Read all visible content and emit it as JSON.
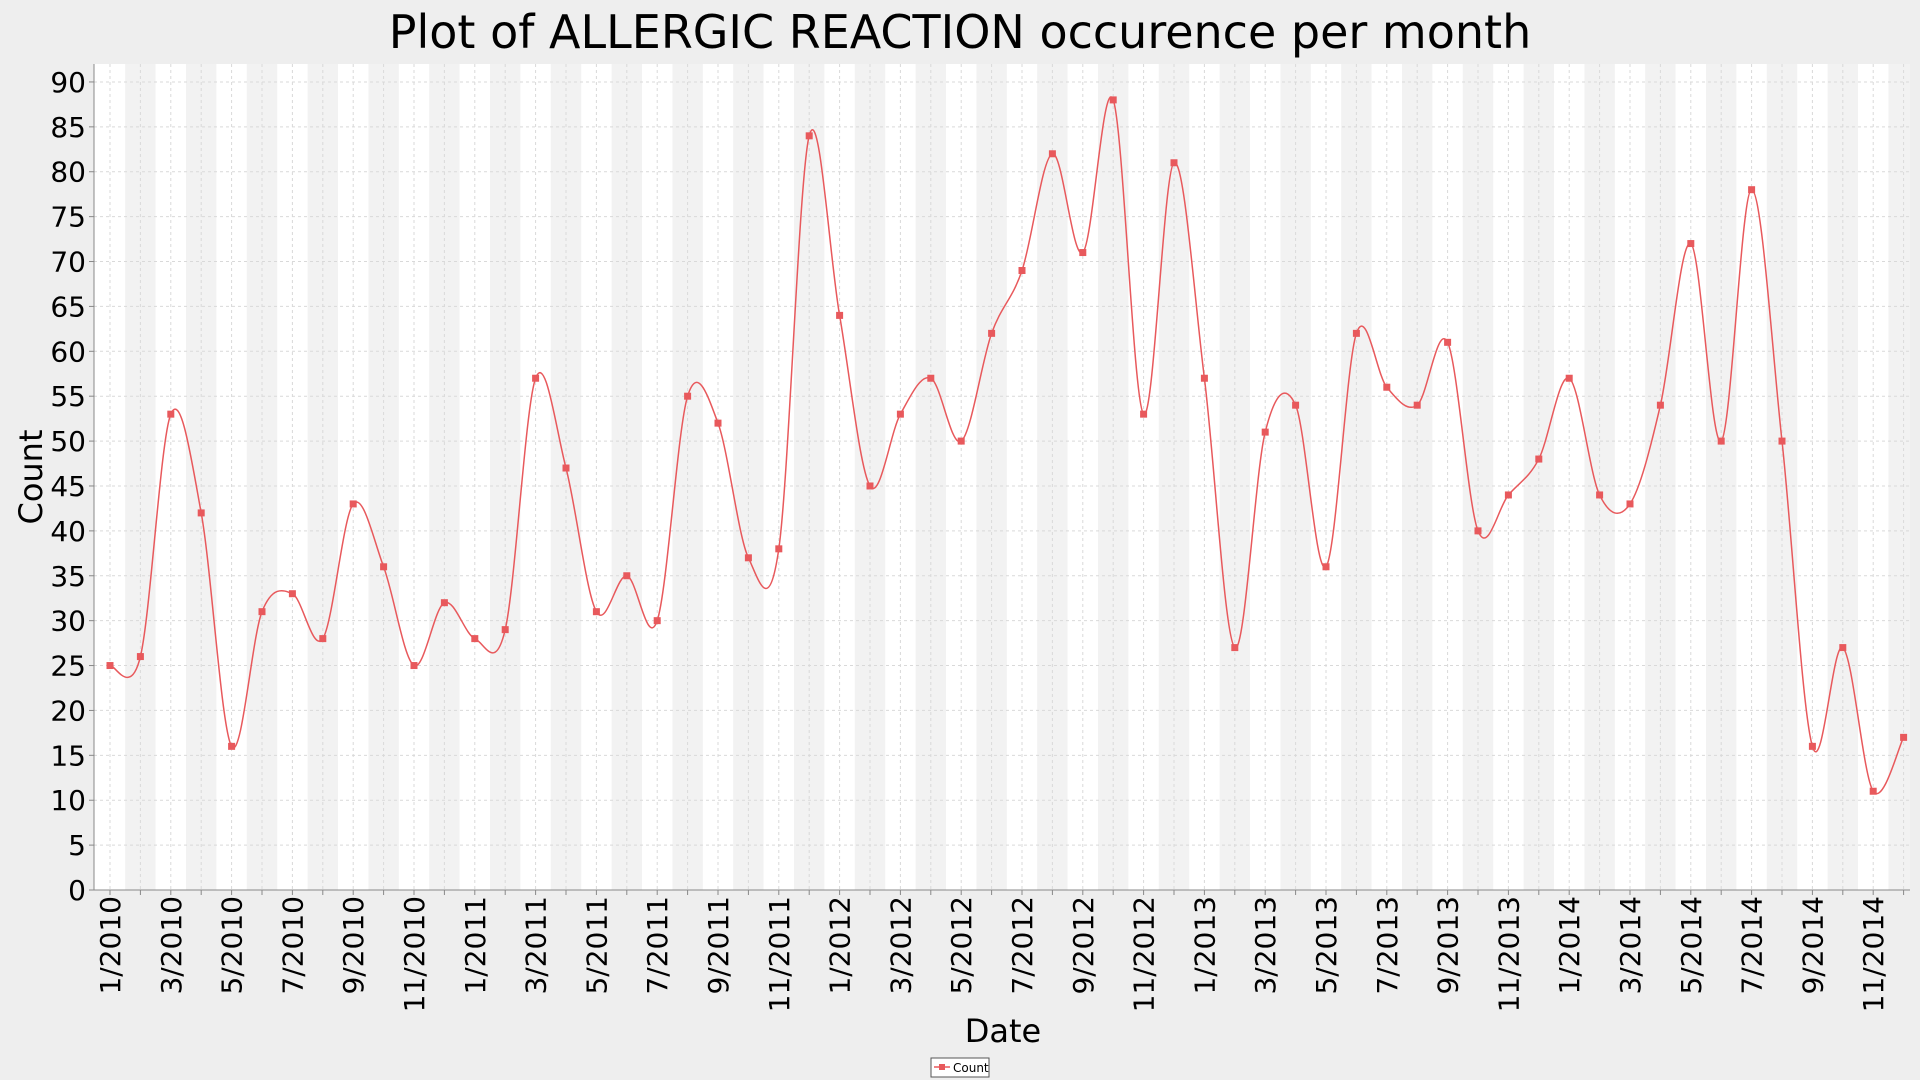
{
  "chart_data": {
    "type": "line",
    "title": "Plot of ALLERGIC REACTION occurence per month",
    "xlabel": "Date",
    "ylabel": "Count",
    "ylim": [
      0,
      92
    ],
    "y_ticks": [
      0,
      5,
      10,
      15,
      20,
      25,
      30,
      35,
      40,
      45,
      50,
      55,
      60,
      65,
      70,
      75,
      80,
      85,
      90
    ],
    "x_ticks": [
      "1/2010",
      "3/2010",
      "5/2010",
      "7/2010",
      "9/2010",
      "11/2010",
      "1/2011",
      "3/2011",
      "5/2011",
      "7/2011",
      "9/2011",
      "11/2011",
      "1/2012",
      "3/2012",
      "5/2012",
      "7/2012",
      "9/2012",
      "11/2012",
      "1/2013",
      "3/2013",
      "5/2013",
      "7/2013",
      "9/2013",
      "11/2013",
      "1/2014",
      "3/2014",
      "5/2014",
      "7/2014",
      "9/2014",
      "11/2014"
    ],
    "grid": true,
    "legend_position": "bottom-center",
    "series": [
      {
        "name": "Count",
        "color": "#e8595c",
        "x": [
          "1/2010",
          "2/2010",
          "3/2010",
          "4/2010",
          "5/2010",
          "6/2010",
          "7/2010",
          "8/2010",
          "9/2010",
          "10/2010",
          "11/2010",
          "12/2010",
          "1/2011",
          "2/2011",
          "3/2011",
          "4/2011",
          "5/2011",
          "6/2011",
          "7/2011",
          "8/2011",
          "9/2011",
          "10/2011",
          "11/2011",
          "12/2011",
          "1/2012",
          "2/2012",
          "3/2012",
          "4/2012",
          "5/2012",
          "6/2012",
          "7/2012",
          "8/2012",
          "9/2012",
          "10/2012",
          "11/2012",
          "12/2012",
          "1/2013",
          "2/2013",
          "3/2013",
          "4/2013",
          "5/2013",
          "6/2013",
          "7/2013",
          "8/2013",
          "9/2013",
          "10/2013",
          "11/2013",
          "12/2013",
          "1/2014",
          "2/2014",
          "3/2014",
          "4/2014",
          "5/2014",
          "6/2014",
          "7/2014",
          "8/2014",
          "9/2014",
          "10/2014",
          "11/2014",
          "12/2014"
        ],
        "values": [
          25,
          26,
          53,
          42,
          16,
          31,
          33,
          28,
          43,
          36,
          25,
          32,
          28,
          29,
          57,
          47,
          31,
          35,
          30,
          55,
          52,
          37,
          38,
          84,
          64,
          45,
          53,
          57,
          50,
          62,
          69,
          82,
          71,
          88,
          53,
          81,
          57,
          27,
          51,
          54,
          36,
          62,
          56,
          54,
          61,
          40,
          44,
          48,
          57,
          44,
          43,
          54,
          72,
          50,
          78,
          50,
          16,
          27,
          11,
          17
        ]
      }
    ]
  }
}
